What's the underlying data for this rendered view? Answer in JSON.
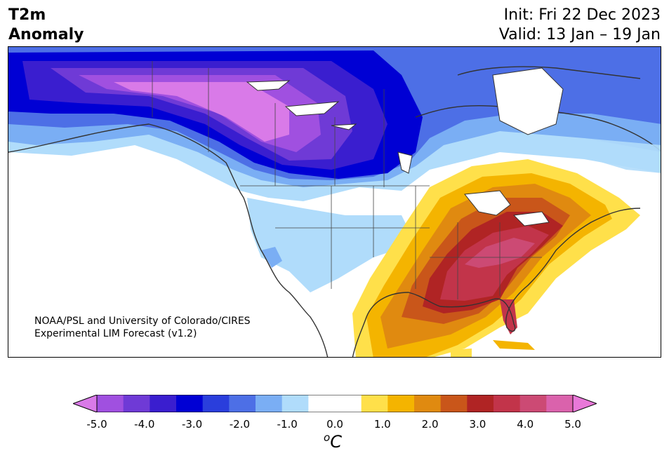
{
  "header": {
    "title_line1": "T2m",
    "title_line2": "Anomaly",
    "init": "Init: Fri 22 Dec 2023",
    "valid": "Valid: 13 Jan – 19 Jan"
  },
  "credit": {
    "line1": "NOAA/PSL and University of Colorado/CIRES",
    "line2": "Experimental LIM Forecast (v1.2)"
  },
  "colorbar": {
    "unit_base": "C",
    "unit_sup": "o",
    "colors": [
      "#d97ae8",
      "#a050e0",
      "#6f3ad6",
      "#3a1ecf",
      "#0000d4",
      "#2a3edc",
      "#4d6fe6",
      "#7aaef4",
      "#b0dcfb",
      "#ffffff",
      "#ffffff",
      "#ffe04a",
      "#f4b400",
      "#e08a10",
      "#c9561a",
      "#b02424",
      "#c2344a",
      "#cc4a74",
      "#da62ac",
      "#e878d8"
    ],
    "tick_labels": [
      "-5.0",
      "-4.0",
      "-3.0",
      "-2.0",
      "-1.0",
      "0.0",
      "1.0",
      "2.0",
      "3.0",
      "4.0",
      "5.0"
    ]
  }
}
